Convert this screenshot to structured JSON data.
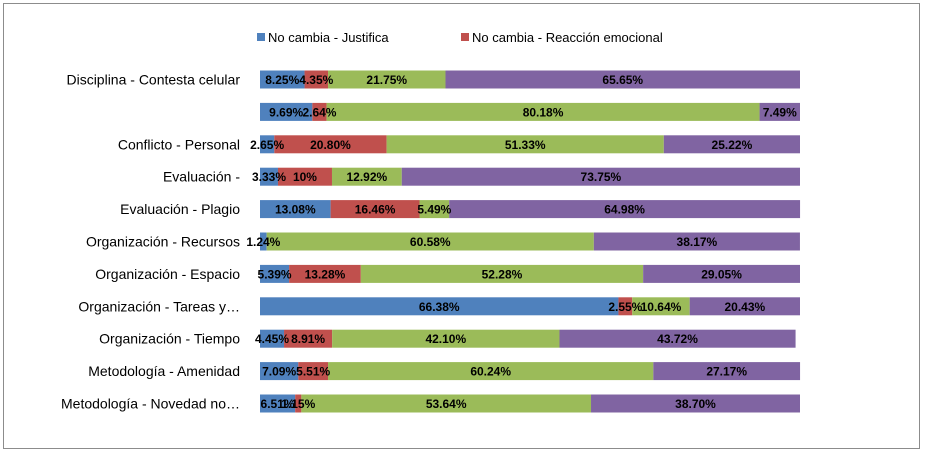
{
  "chart_data": {
    "type": "bar",
    "orientation": "horizontal",
    "stacked": true,
    "grid": false,
    "legend_position": "top",
    "categories": [
      "Disciplina - Contesta celular",
      "",
      "Conflicto - Personal",
      "Evaluación -",
      "Evaluación - Plagio",
      "Organización - Recursos",
      "Organización - Espacio",
      "Organización - Tareas y…",
      "Organización - Tiempo",
      "Metodología - Amenidad",
      "Metodología - Novedad no…"
    ],
    "series": [
      {
        "name": "No cambia - Justifica",
        "color": "#4f81bd",
        "values": [
          8.25,
          9.69,
          2.65,
          3.33,
          13.08,
          1.24,
          5.39,
          66.38,
          4.45,
          7.09,
          6.51
        ],
        "labels": [
          "8.25%",
          "9.69%",
          "2.65%",
          "3.33%",
          "13.08%",
          "1.24%",
          "5.39%",
          "66.38%",
          "4.45%",
          "7.09%",
          "6.51%"
        ]
      },
      {
        "name": "No cambia - Reacción emocional",
        "color": "#c0504d",
        "values": [
          4.35,
          2.64,
          20.8,
          10.0,
          16.46,
          0.0,
          13.28,
          2.55,
          8.91,
          5.51,
          1.15
        ],
        "labels": [
          "4.35%",
          "2.64%",
          "20.80%",
          "10%",
          "16.46%",
          "",
          "13.28%",
          "2.55%",
          "8.91%",
          "5.51%",
          "1.15%"
        ]
      },
      {
        "name": "",
        "color": "#9bbb59",
        "values": [
          21.75,
          80.18,
          51.33,
          12.92,
          5.49,
          60.58,
          52.28,
          10.64,
          42.1,
          60.24,
          53.64
        ],
        "labels": [
          "21.75%",
          "80.18%",
          "51.33%",
          "12.92%",
          "5.49%",
          "60.58%",
          "52.28%",
          "10.64%",
          "42.10%",
          "60.24%",
          "53.64%"
        ]
      },
      {
        "name": "",
        "color": "#8064a2",
        "values": [
          65.65,
          7.49,
          25.22,
          73.75,
          64.98,
          38.17,
          29.05,
          20.43,
          43.72,
          27.17,
          38.7
        ],
        "labels": [
          "65.65%",
          "7.49%",
          "25.22%",
          "73.75%",
          "64.98%",
          "38.17%",
          "29.05%",
          "20.43%",
          "43.72%",
          "27.17%",
          "38.70%"
        ]
      }
    ],
    "title": "",
    "xlabel": "",
    "ylabel": "",
    "xlim": [
      0,
      100
    ]
  }
}
